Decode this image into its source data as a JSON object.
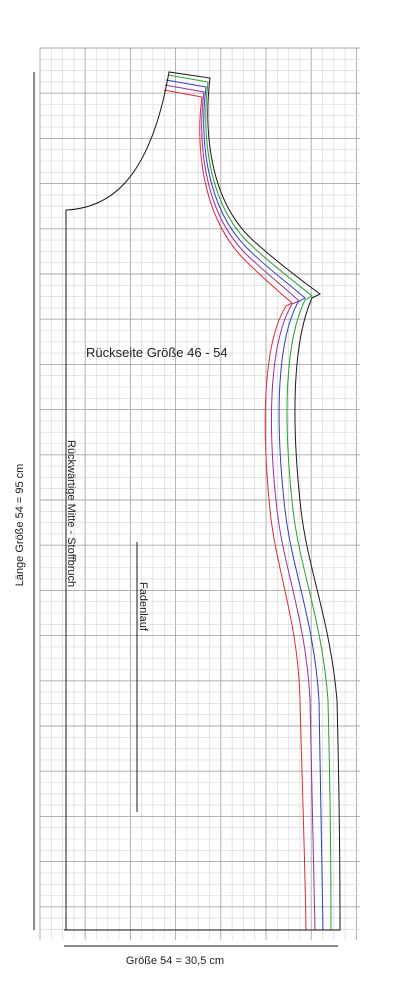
{
  "pattern": {
    "title": "Rückseite Größe 46 - 54",
    "center_back_label": "Rückwärtige Mitte - Stoffbruch",
    "grainline_label": "Fadenlauf",
    "length_label": "Länge Größe 54 = 95 cm",
    "width_label": "Größe 54 = 30,5 cm"
  },
  "colors": {
    "paper": "#ffffff",
    "grid_minor": "#d6d6d6",
    "grid_major": "#a8a8a8",
    "outline": "#1a1a1a",
    "size_lines": [
      "#e0283a",
      "#9b2ba0",
      "#2a3ec8",
      "#25a032",
      "#1a1a1a"
    ]
  }
}
